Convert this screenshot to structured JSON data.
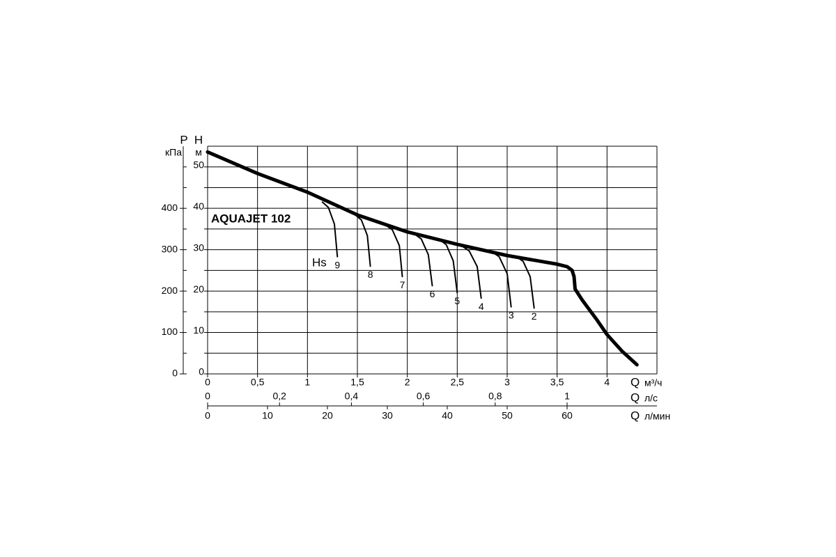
{
  "chart_data": {
    "type": "line",
    "title": "AQUAJET 102",
    "curve_label": "Hs",
    "x_label": "Q",
    "x_unit": "м³/ч",
    "xlim": [
      0,
      4.5
    ],
    "xticks": [
      0,
      {
        "value": 0.5,
        "label": "0,5"
      },
      1,
      {
        "value": 1.5,
        "label": "1,5"
      },
      2,
      {
        "value": 2.5,
        "label": "2,5"
      },
      3,
      {
        "value": 3.5,
        "label": "3,5"
      },
      4
    ],
    "x2": {
      "label": "Q",
      "unit": "л/с",
      "xlim": [
        0,
        1.25
      ],
      "xticks": [
        0,
        {
          "value": 0.2,
          "label": "0,2"
        },
        {
          "value": 0.4,
          "label": "0,4"
        },
        {
          "value": 0.6,
          "label": "0,6"
        },
        {
          "value": 0.8,
          "label": "0,8"
        },
        1
      ]
    },
    "x3": {
      "label": "Q",
      "unit": "л/мин",
      "xlim": [
        0,
        75
      ],
      "xticks": [
        0,
        10,
        20,
        30,
        40,
        50,
        60
      ]
    },
    "y_label": "H",
    "y_unit": "м",
    "ylim": [
      0,
      55
    ],
    "yticks": [
      0,
      10,
      20,
      30,
      40,
      50
    ],
    "y_minor_ticks": [
      5,
      15,
      25,
      35,
      45
    ],
    "y2_label": "P",
    "y2_unit": "кПа",
    "y2lim": [
      0,
      550
    ],
    "y2ticks": [
      0,
      100,
      200,
      300,
      400
    ],
    "y2_minor_ticks": [
      50,
      150,
      250,
      350,
      450,
      500
    ],
    "grid": true,
    "series": [
      {
        "color": "#000000",
        "x": [
          0,
          0.5,
          1,
          1.5,
          2,
          2.5,
          3,
          3.5,
          3.6,
          3.65,
          3.67,
          3.68,
          3.75,
          3.9,
          4.0,
          4.15,
          4.3
        ],
        "values": [
          53.6,
          48.4,
          43.9,
          38.4,
          34.3,
          31.3,
          28.6,
          26.5,
          25.9,
          25,
          23.5,
          20.5,
          17.9,
          13,
          9.5,
          5.5,
          2.2
        ]
      },
      {
        "name": "9",
        "color": "#000000",
        "x": [
          1.15,
          1.21,
          1.27,
          1.3
        ],
        "values": [
          41.5,
          40.2,
          36.2,
          28.3
        ]
      },
      {
        "name": "8",
        "color": "#000000",
        "x": [
          1.48,
          1.54,
          1.6,
          1.63
        ],
        "values": [
          38.4,
          37.2,
          33.4,
          26
        ]
      },
      {
        "name": "7",
        "color": "#000000",
        "x": [
          1.78,
          1.85,
          1.92,
          1.95
        ],
        "values": [
          36,
          34.8,
          31,
          23.5
        ]
      },
      {
        "name": "6",
        "color": "#000000",
        "x": [
          2.07,
          2.14,
          2.21,
          2.25
        ],
        "values": [
          33.8,
          32.6,
          28.8,
          21.3
        ]
      },
      {
        "name": "5",
        "color": "#000000",
        "x": [
          2.32,
          2.39,
          2.46,
          2.5
        ],
        "values": [
          32.5,
          31.2,
          27.3,
          19.6
        ]
      },
      {
        "name": "4",
        "color": "#000000",
        "x": [
          2.54,
          2.62,
          2.7,
          2.74
        ],
        "values": [
          31,
          29.7,
          25.9,
          18.3
        ]
      },
      {
        "name": "3",
        "color": "#000000",
        "x": [
          2.84,
          2.92,
          3.0,
          3.04
        ],
        "values": [
          29.6,
          28.3,
          24.2,
          16.2
        ]
      },
      {
        "name": "2",
        "color": "#000000",
        "x": [
          3.08,
          3.16,
          3.23,
          3.27
        ],
        "values": [
          28.5,
          27.2,
          23.5,
          15.9
        ]
      }
    ]
  }
}
